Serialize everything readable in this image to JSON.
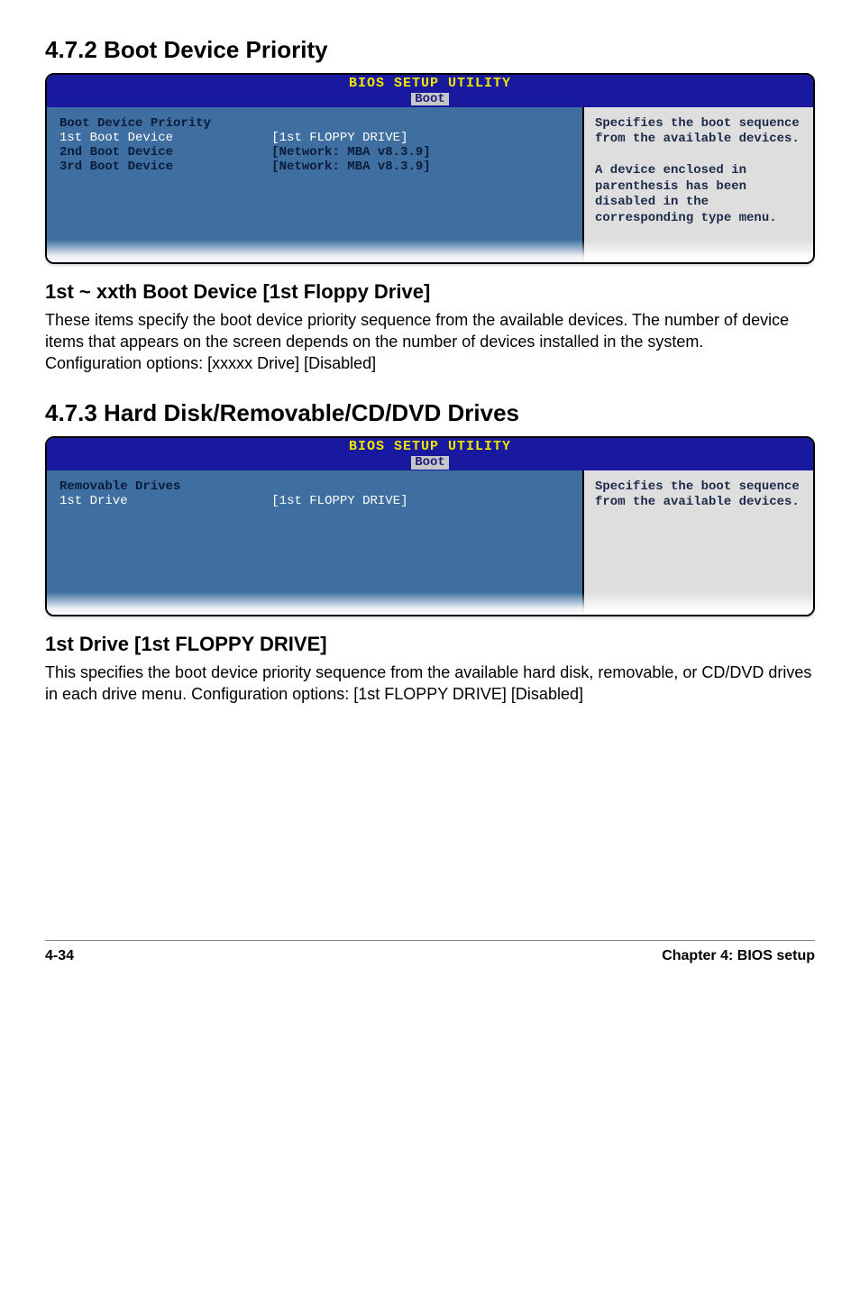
{
  "section472": {
    "heading": "4.7.2   Boot Device Priority",
    "bios": {
      "header_title": "BIOS SETUP UTILITY",
      "header_tab": "Boot",
      "left_title": "Boot Device Priority",
      "rows": [
        {
          "label": "1st Boot Device",
          "value": "[1st FLOPPY DRIVE]",
          "selected": true
        },
        {
          "label": "2nd Boot Device",
          "value": "[Network: MBA v8.3.9]",
          "selected": false
        },
        {
          "label": "3rd Boot Device",
          "value": "[Network: MBA v8.3.9]",
          "selected": false
        }
      ],
      "help": "Specifies the boot sequence from the available devices.\n\nA device enclosed in parenthesis has been disabled in the corresponding type menu."
    },
    "sub_heading": "1st ~ xxth Boot Device [1st Floppy Drive]",
    "text": "These items specify the boot device priority sequence from the available devices. The number of device items that appears on the screen depends on the number of devices installed in the system.\nConfiguration options: [xxxxx Drive] [Disabled]"
  },
  "section473": {
    "heading": "4.7.3   Hard Disk/Removable/CD/DVD Drives",
    "bios": {
      "header_title": "BIOS SETUP UTILITY",
      "header_tab": "Boot",
      "left_title": "Removable Drives",
      "rows": [
        {
          "label": "1st Drive",
          "value": "[1st FLOPPY DRIVE]",
          "selected": true
        }
      ],
      "help": "Specifies the boot sequence from the available devices."
    },
    "sub_heading": "1st Drive [1st FLOPPY DRIVE]",
    "text": "This specifies the boot device priority sequence from the available hard disk, removable, or CD/DVD drives in each drive menu. Configuration options: [1st FLOPPY DRIVE] [Disabled]"
  },
  "footer": {
    "left": "4-34",
    "right": "Chapter 4: BIOS setup"
  },
  "colors": {
    "bios_header_bg": "#1919a0",
    "bios_header_text": "#f2e600",
    "bios_tab_bg": "#c7c7c7",
    "bios_left_bg": "#3e6fa0",
    "bios_right_bg": "#dedede"
  }
}
